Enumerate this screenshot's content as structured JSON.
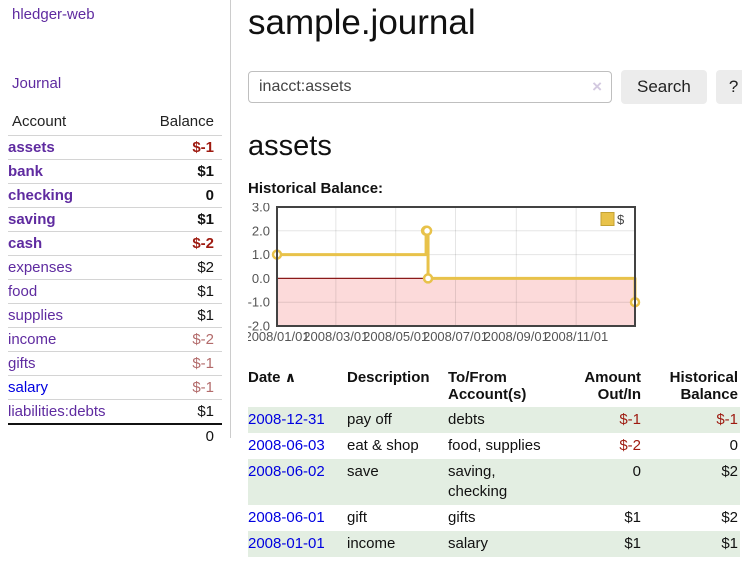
{
  "app": {
    "title": "hledger-web"
  },
  "sidebar": {
    "nav": {
      "journal": "Journal"
    },
    "table": {
      "headers": [
        "Account",
        "Balance"
      ],
      "rows": [
        {
          "account": "assets",
          "balance": "$-1"
        },
        {
          "account": "bank",
          "balance": "$1"
        },
        {
          "account": "checking",
          "balance": "0"
        },
        {
          "account": "saving",
          "balance": "$1"
        },
        {
          "account": "cash",
          "balance": "$-2"
        },
        {
          "account": "expenses",
          "balance": "$2"
        },
        {
          "account": "food",
          "balance": "$1"
        },
        {
          "account": "supplies",
          "balance": "$1"
        },
        {
          "account": "income",
          "balance": "$-2"
        },
        {
          "account": "gifts",
          "balance": "$-1"
        },
        {
          "account": "salary",
          "balance": "$-1"
        },
        {
          "account": "liabilities:debts",
          "balance": "$1"
        }
      ],
      "total": "0"
    }
  },
  "main": {
    "title": "sample.journal",
    "search": {
      "value": "inacct:assets",
      "clear_icon": "×",
      "button": "Search",
      "help": "?"
    },
    "account_heading": "assets"
  },
  "chart_data": {
    "type": "line",
    "title": "Historical Balance:",
    "step": "post",
    "series": [
      {
        "name": "$",
        "color": "#e8c24a",
        "points": [
          [
            "2008-01-01",
            1
          ],
          [
            "2008-06-01",
            2
          ],
          [
            "2008-06-02",
            2
          ],
          [
            "2008-06-03",
            0
          ],
          [
            "2008-12-31",
            -1
          ]
        ]
      }
    ],
    "xlim": [
      "2008-01-01",
      "2008-12-31"
    ],
    "ylim": [
      -2,
      3
    ],
    "yticks": [
      "3.0",
      "2.0",
      "1.0",
      "0.0",
      "-1.0",
      "-2.0"
    ],
    "xticks": [
      {
        "pos": "2008-01-01",
        "label": "2008/01/01"
      },
      {
        "pos": "2008-03-01",
        "label": "2008/03/01"
      },
      {
        "pos": "2008-05-01",
        "label": "2008/05/01"
      },
      {
        "pos": "2008-07-01",
        "label": "2008/07/01"
      },
      {
        "pos": "2008-09-01",
        "label": "2008/09/01"
      },
      {
        "pos": "2008-11-01",
        "label": "2008/11/01"
      }
    ],
    "legend": {
      "position": "top-right",
      "entries": [
        {
          "label": "$",
          "color": "#e8c24a"
        }
      ]
    },
    "grid": true,
    "negative_region_color": "#fcdada",
    "zero_line_color": "#8b1a1a",
    "border_color": "#434343",
    "axis_label_color": "#545454"
  },
  "register": {
    "headers": [
      "Date",
      "Description",
      "To/From Account(s)",
      "Amount Out/In",
      "Historical Balance"
    ],
    "sort_icon": "∧",
    "rows": [
      {
        "date": "2008-12-31",
        "description": "pay off",
        "accounts": "debts",
        "amount": "$-1",
        "balance": "$-1"
      },
      {
        "date": "2008-06-03",
        "description": "eat & shop",
        "accounts": "food, supplies",
        "amount": "$-2",
        "balance": "0"
      },
      {
        "date": "2008-06-02",
        "description": "save",
        "accounts": "saving, checking",
        "amount": "0",
        "balance": "$2"
      },
      {
        "date": "2008-06-01",
        "description": "gift",
        "accounts": "gifts",
        "amount": "$1",
        "balance": "$2"
      },
      {
        "date": "2008-01-01",
        "description": "income",
        "accounts": "salary",
        "amount": "$1",
        "balance": "$1"
      }
    ]
  }
}
